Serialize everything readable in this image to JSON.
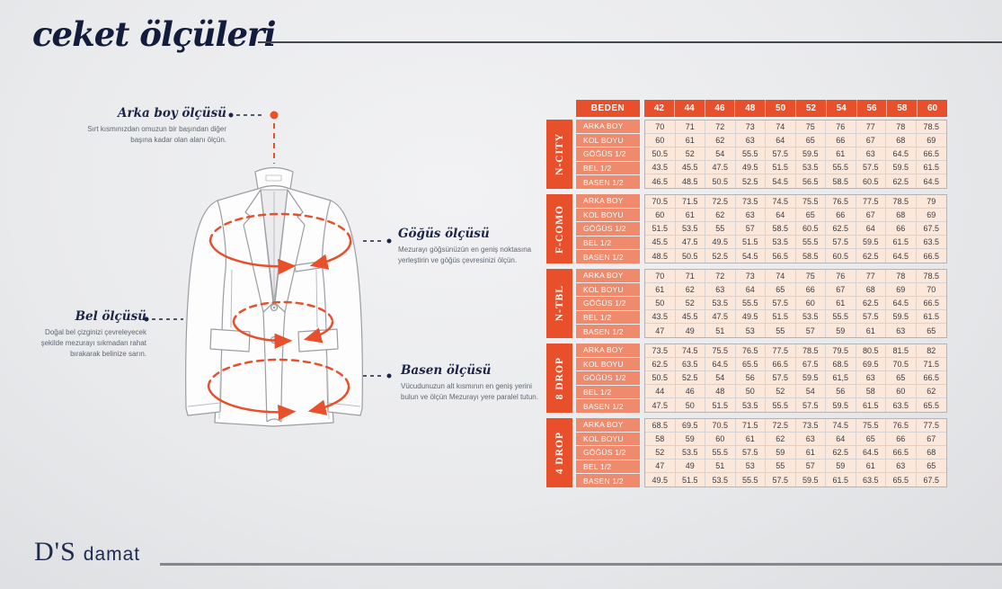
{
  "page": {
    "title": "ceket ölçüleri",
    "brand": {
      "logo_main": "D'S",
      "logo_sub": "damat"
    }
  },
  "annotations": {
    "arka_boy": {
      "title": "Arka boy ölçüsü",
      "desc": "Sırt kısmınızdan omuzun bir başından diğer başına kadar olan alanı ölçün."
    },
    "gogus": {
      "title": "Göğüs ölçüsü",
      "desc": "Mezurayı göğsünüzün en geniş noktasına yerleştirin ve göğüs çevresinizi ölçün."
    },
    "bel": {
      "title": "Bel ölçüsü",
      "desc": "Doğal bel çizginizi çevreleyecek şekilde mezurayı sıkmadan rahat bırakarak belinize sarın."
    },
    "basen": {
      "title": "Basen ölçüsü",
      "desc": "Vücudunuzun alt kısmının en geniş yerini bulun ve ölçün Mezurayı yere paralel tutun."
    }
  },
  "colors": {
    "accent_orange": "#e8502c",
    "salmon": "#ef8a6d",
    "cell_peach": "#fbe8db",
    "navy": "#1c2547"
  },
  "table": {
    "header_label": "BEDEN",
    "sizes": [
      "42",
      "44",
      "46",
      "48",
      "50",
      "52",
      "54",
      "56",
      "58",
      "60"
    ],
    "row_labels": [
      "ARKA BOY",
      "KOL BOYU",
      "GÖĞÜS 1/2",
      "BEL 1/2",
      "BASEN 1/2"
    ],
    "sections": [
      {
        "name": "N-CITY",
        "rows": [
          [
            "70",
            "71",
            "72",
            "73",
            "74",
            "75",
            "76",
            "77",
            "78",
            "78.5"
          ],
          [
            "60",
            "61",
            "62",
            "63",
            "64",
            "65",
            "66",
            "67",
            "68",
            "69"
          ],
          [
            "50.5",
            "52",
            "54",
            "55.5",
            "57.5",
            "59.5",
            "61",
            "63",
            "64.5",
            "66.5"
          ],
          [
            "43.5",
            "45.5",
            "47.5",
            "49.5",
            "51.5",
            "53.5",
            "55.5",
            "57.5",
            "59.5",
            "61.5"
          ],
          [
            "46.5",
            "48.5",
            "50.5",
            "52.5",
            "54.5",
            "56.5",
            "58.5",
            "60.5",
            "62.5",
            "64.5"
          ]
        ]
      },
      {
        "name": "F-COMO",
        "rows": [
          [
            "70.5",
            "71.5",
            "72.5",
            "73.5",
            "74.5",
            "75.5",
            "76.5",
            "77.5",
            "78.5",
            "79"
          ],
          [
            "60",
            "61",
            "62",
            "63",
            "64",
            "65",
            "66",
            "67",
            "68",
            "69"
          ],
          [
            "51.5",
            "53.5",
            "55",
            "57",
            "58.5",
            "60.5",
            "62.5",
            "64",
            "66",
            "67.5"
          ],
          [
            "45.5",
            "47.5",
            "49.5",
            "51.5",
            "53.5",
            "55.5",
            "57.5",
            "59.5",
            "61.5",
            "63.5"
          ],
          [
            "48.5",
            "50.5",
            "52.5",
            "54.5",
            "56.5",
            "58.5",
            "60.5",
            "62.5",
            "64.5",
            "66.5"
          ]
        ]
      },
      {
        "name": "N-TBL",
        "rows": [
          [
            "70",
            "71",
            "72",
            "73",
            "74",
            "75",
            "76",
            "77",
            "78",
            "78.5"
          ],
          [
            "61",
            "62",
            "63",
            "64",
            "65",
            "66",
            "67",
            "68",
            "69",
            "70"
          ],
          [
            "50",
            "52",
            "53.5",
            "55.5",
            "57.5",
            "60",
            "61",
            "62.5",
            "64.5",
            "66.5"
          ],
          [
            "43.5",
            "45.5",
            "47.5",
            "49.5",
            "51.5",
            "53.5",
            "55.5",
            "57.5",
            "59.5",
            "61.5"
          ],
          [
            "47",
            "49",
            "51",
            "53",
            "55",
            "57",
            "59",
            "61",
            "63",
            "65"
          ]
        ]
      },
      {
        "name": "8 DROP",
        "rows": [
          [
            "73.5",
            "74.5",
            "75.5",
            "76.5",
            "77.5",
            "78.5",
            "79.5",
            "80.5",
            "81.5",
            "82"
          ],
          [
            "62.5",
            "63.5",
            "64.5",
            "65.5",
            "66.5",
            "67.5",
            "68.5",
            "69.5",
            "70.5",
            "71.5"
          ],
          [
            "50.5",
            "52.5",
            "54",
            "56",
            "57.5",
            "59.5",
            "61,5",
            "63",
            "65",
            "66.5"
          ],
          [
            "44",
            "46",
            "48",
            "50",
            "52",
            "54",
            "56",
            "58",
            "60",
            "62"
          ],
          [
            "47.5",
            "50",
            "51.5",
            "53.5",
            "55.5",
            "57.5",
            "59.5",
            "61.5",
            "63.5",
            "65.5"
          ]
        ]
      },
      {
        "name": "4 DROP",
        "rows": [
          [
            "68.5",
            "69.5",
            "70.5",
            "71.5",
            "72.5",
            "73.5",
            "74.5",
            "75.5",
            "76.5",
            "77.5"
          ],
          [
            "58",
            "59",
            "60",
            "61",
            "62",
            "63",
            "64",
            "65",
            "66",
            "67"
          ],
          [
            "52",
            "53.5",
            "55.5",
            "57.5",
            "59",
            "61",
            "62.5",
            "64.5",
            "66.5",
            "68"
          ],
          [
            "47",
            "49",
            "51",
            "53",
            "55",
            "57",
            "59",
            "61",
            "63",
            "65"
          ],
          [
            "49.5",
            "51.5",
            "53.5",
            "55.5",
            "57.5",
            "59.5",
            "61.5",
            "63.5",
            "65.5",
            "67.5"
          ]
        ]
      }
    ]
  }
}
